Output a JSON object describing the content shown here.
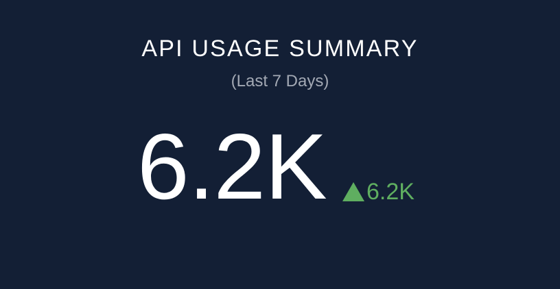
{
  "summary": {
    "title": "API USAGE SUMMARY",
    "subtitle": "(Last 7 Days)",
    "value": "6.2K",
    "delta": {
      "icon": "triangle-up-icon",
      "value": "6.2K",
      "color": "#5fae60"
    }
  },
  "colors": {
    "background": "#131f35",
    "title": "#ffffff",
    "subtitle": "#a3a9b4",
    "positive": "#5fae60"
  }
}
